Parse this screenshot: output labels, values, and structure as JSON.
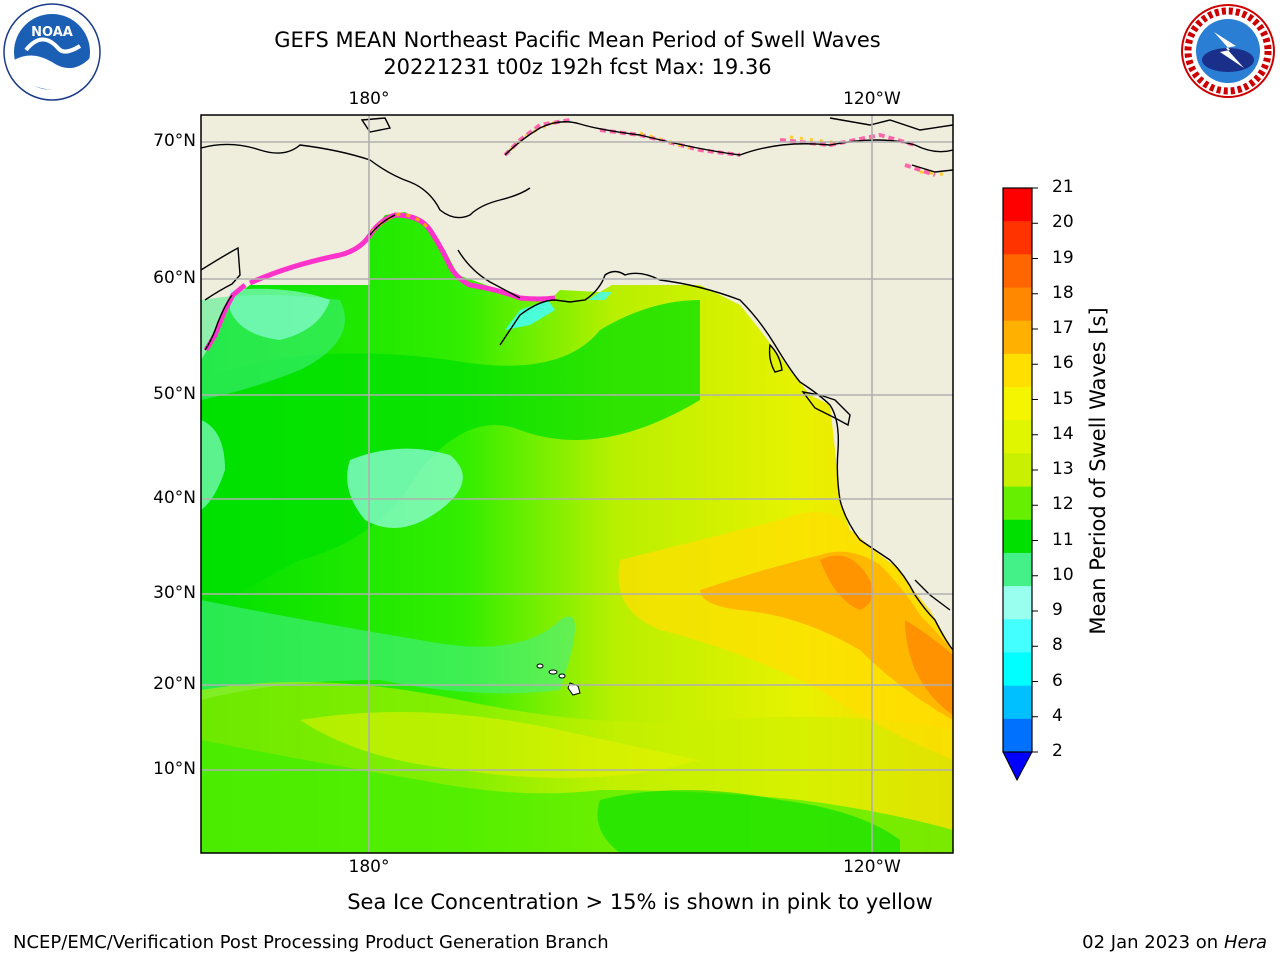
{
  "header": {
    "title_line1": "GEFS MEAN Northeast Pacific Mean Period of Swell Waves",
    "title_line2": "20221231 t00z 192h fcst   Max: 19.36"
  },
  "logos": {
    "left": {
      "name": "noaa-logo",
      "text": "NOAA",
      "ring_text": "NATIONAL OCEANIC AND ATMOSPHERIC ADMINISTRATION · U.S. DEPARTMENT OF COMMERCE"
    },
    "right": {
      "name": "nws-logo",
      "ring_text": "NATIONAL WEATHER SERVICE"
    }
  },
  "map": {
    "lon_ticks_top": [
      "180°",
      "120°W"
    ],
    "lon_ticks_bottom": [
      "180°",
      "120°W"
    ],
    "lat_ticks": [
      "70°N",
      "60°N",
      "50°N",
      "40°N",
      "30°N",
      "20°N",
      "10°N"
    ],
    "colors": {
      "land": "#efeddc",
      "gridline": "#b0b0b0",
      "coast": "#000000"
    }
  },
  "colorbar": {
    "label": "Mean Period of Swell Waves [s]",
    "ticks": [
      "21",
      "20",
      "19",
      "18",
      "17",
      "16",
      "15",
      "14",
      "13",
      "12",
      "11",
      "10",
      "9",
      "8",
      "6",
      "4",
      "2"
    ],
    "colors_top_to_bottom": [
      "#ff0000",
      "#ff3300",
      "#ff6600",
      "#ff8800",
      "#ffb000",
      "#ffdf00",
      "#f5f500",
      "#e0f500",
      "#c8f000",
      "#66f000",
      "#00e000",
      "#44f088",
      "#99ffee",
      "#44ffff",
      "#00ffff",
      "#00c0ff",
      "#0070ff"
    ],
    "extend_color": "#0000ff"
  },
  "notes": {
    "sea_ice": "Sea Ice Concentration > 15% is shown in pink to yellow"
  },
  "footer": {
    "left": "NCEP/EMC/Verification Post Processing Product Generation Branch",
    "right_date": "02 Jan 2023 on ",
    "right_host": "Hera"
  }
}
